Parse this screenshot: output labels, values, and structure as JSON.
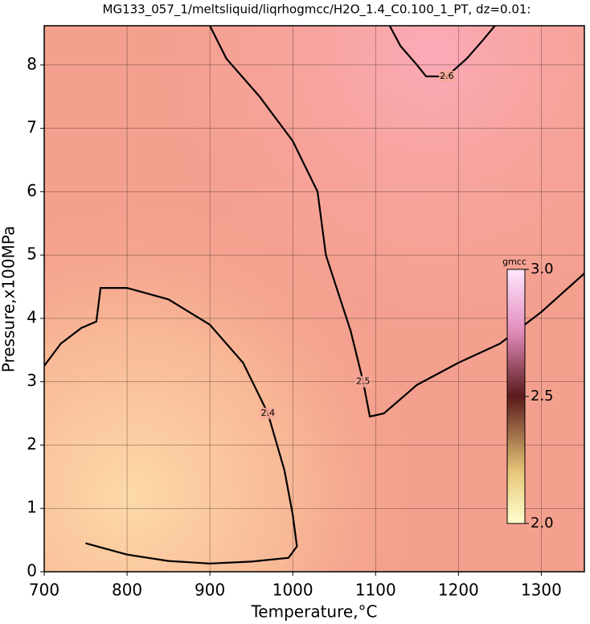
{
  "chart_data": {
    "type": "contour",
    "title": "MG133_057_1/meltsliquid/liqrhogmcc/H2O_1.4_C0.100_1_PT, dz=0.01:",
    "x_label": "Temperature,°C",
    "y_label": "Pressure,x100MPa",
    "xlim": [
      700,
      1352
    ],
    "ylim": [
      0,
      8.62
    ],
    "xticks": [
      700,
      800,
      900,
      1000,
      1100,
      1200,
      1300
    ],
    "yticks": [
      0,
      1,
      2,
      3,
      4,
      5,
      6,
      7,
      8
    ],
    "grid": true,
    "contours": [
      {
        "level": 2.4,
        "color": "#000000",
        "x": [
          700,
          720,
          745,
          763,
          768,
          800,
          850,
          900,
          940,
          970,
          990,
          1000,
          1005,
          995,
          950,
          900,
          850,
          800,
          750
        ],
        "y": [
          3.25,
          3.6,
          3.85,
          3.95,
          4.48,
          4.48,
          4.3,
          3.9,
          3.3,
          2.5,
          1.6,
          0.9,
          0.4,
          0.22,
          0.16,
          0.13,
          0.17,
          0.27,
          0.45
        ]
      },
      {
        "level": 2.5,
        "color": "#000000",
        "x": [
          900,
          920,
          960,
          1000,
          1030,
          1040,
          1050,
          1070,
          1085,
          1093,
          1110,
          1150,
          1200,
          1250,
          1300,
          1352
        ],
        "y": [
          8.62,
          8.1,
          7.5,
          6.8,
          6.0,
          5.0,
          4.6,
          3.8,
          3.0,
          2.45,
          2.5,
          2.95,
          3.3,
          3.6,
          4.1,
          4.71
        ]
      },
      {
        "level": 2.6,
        "color": "#000000",
        "x": [
          1117,
          1130,
          1150,
          1161,
          1186,
          1210,
          1230,
          1244
        ],
        "y": [
          8.62,
          8.3,
          8.0,
          7.82,
          7.82,
          8.1,
          8.4,
          8.62
        ]
      }
    ],
    "colorbar": {
      "label": "gmcc",
      "lim": [
        2,
        3
      ],
      "ticks": [
        {
          "value": 3,
          "label": "3.0"
        },
        2.5,
        {
          "value": 2,
          "label": "2.0"
        }
      ]
    }
  }
}
